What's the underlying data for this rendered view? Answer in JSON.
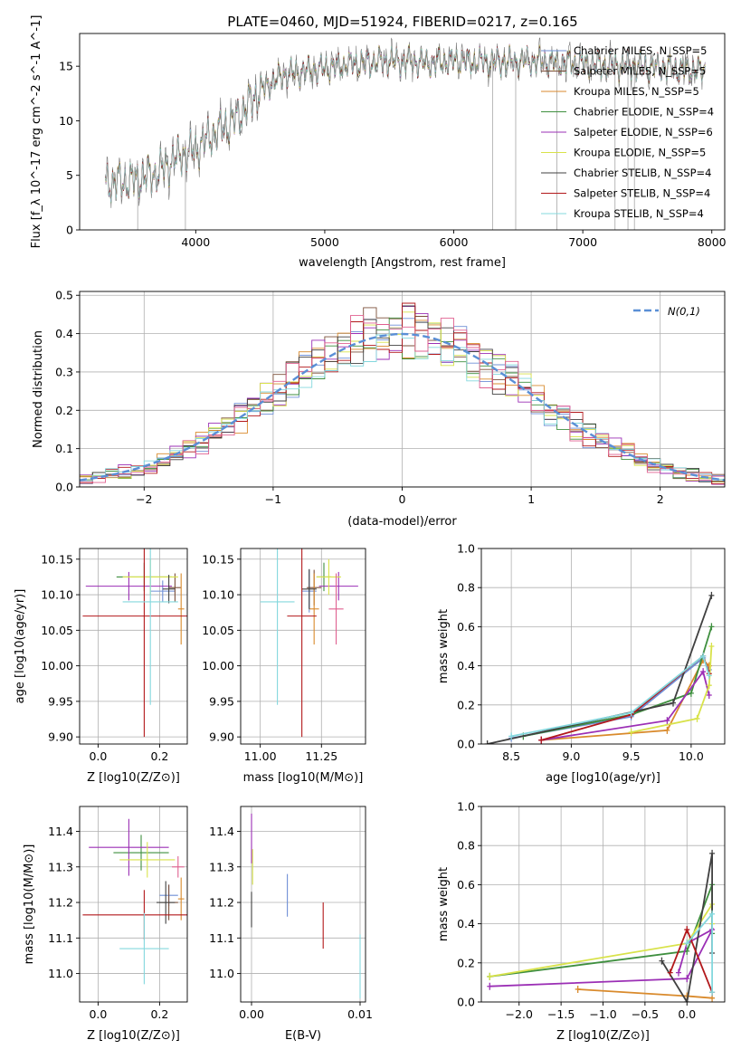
{
  "figure_title": "PLATE=0460, MJD=51924, FIBERID=0217, z=0.165",
  "colors": [
    "#6f8fd6",
    "#7b4f39",
    "#d98a2c",
    "#3f8f3f",
    "#9b2fb5",
    "#d8e24a",
    "#404040",
    "#b2181b",
    "#84d8de"
  ],
  "chart_data": [
    {
      "type": "line",
      "panel": "spectrum",
      "xlabel": "wavelength [Angstrom, rest frame]",
      "ylabel": "Flux [f_λ 10^-17 erg cm^-2 s^-1 A^-1]",
      "xlim": [
        3100,
        8100
      ],
      "ylim": [
        0,
        18
      ],
      "xticks": [
        4000,
        5000,
        6000,
        7000,
        8000
      ],
      "yticks": [
        0,
        5,
        10,
        15
      ],
      "legend_position": "upper-right",
      "wavelength_range": [
        3300,
        7950
      ],
      "continuum": [
        [
          3300,
          4.3
        ],
        [
          3500,
          4.5
        ],
        [
          3700,
          5.2
        ],
        [
          3900,
          7.0
        ],
        [
          4000,
          7.3
        ],
        [
          4100,
          8.5
        ],
        [
          4300,
          10.0
        ],
        [
          4500,
          12.8
        ],
        [
          4700,
          14.3
        ],
        [
          4900,
          14.6
        ],
        [
          5200,
          15.2
        ],
        [
          5500,
          15.5
        ],
        [
          5800,
          15.3
        ],
        [
          6000,
          15.5
        ],
        [
          6300,
          15.4
        ],
        [
          6600,
          15.5
        ],
        [
          7000,
          15.2
        ],
        [
          7400,
          15.0
        ],
        [
          7950,
          14.6
        ]
      ],
      "series": [
        {
          "name": "Chabrier MILES, N_SSP=5",
          "color": "#6f8fd6"
        },
        {
          "name": "Salpeter MILES, N_SSP=5",
          "color": "#7b4f39"
        },
        {
          "name": "Kroupa MILES, N_SSP=5",
          "color": "#d98a2c"
        },
        {
          "name": "Chabrier ELODIE, N_SSP=4",
          "color": "#3f8f3f"
        },
        {
          "name": "Salpeter ELODIE, N_SSP=6",
          "color": "#9b2fb5"
        },
        {
          "name": "Kroupa ELODIE, N_SSP=5",
          "color": "#d8e24a"
        },
        {
          "name": "Chabrier STELIB, N_SSP=4",
          "color": "#404040"
        },
        {
          "name": "Salpeter STELIB, N_SSP=4",
          "color": "#b2181b"
        },
        {
          "name": "Kroupa STELIB, N_SSP=4",
          "color": "#84d8de"
        }
      ],
      "data_spikes": [
        [
          3550,
          0
        ],
        [
          3920,
          0
        ],
        [
          6300,
          0
        ],
        [
          6480,
          0
        ],
        [
          6800,
          0
        ],
        [
          7250,
          0
        ],
        [
          7350,
          0
        ],
        [
          7400,
          0
        ]
      ]
    },
    {
      "type": "bar",
      "panel": "residual-histogram",
      "xlabel": "(data-model)/error",
      "ylabel": "Normed distribution",
      "xlim": [
        -2.5,
        2.5
      ],
      "ylim": [
        0,
        0.51
      ],
      "xticks": [
        -2,
        -1,
        0,
        1,
        2
      ],
      "yticks": [
        0.0,
        0.1,
        0.2,
        0.3,
        0.4,
        0.5
      ],
      "grid": true,
      "legend": "N(0,1)",
      "legend_position": "upper-right",
      "bins": 50,
      "reference_curve": "gaussian mean 0 sigma 1",
      "gaussian_color": "#5a8fd6"
    },
    {
      "type": "scatter",
      "panel": "age-vs-Z",
      "xlabel": "Z [log10(Z/Z⊙)]",
      "ylabel": "age [log10(age/yr)]",
      "xlim": [
        -0.06,
        0.29
      ],
      "ylim": [
        9.89,
        10.165
      ],
      "xticks": [
        0.0,
        0.2
      ],
      "yticks": [
        9.9,
        9.95,
        10.0,
        10.05,
        10.1,
        10.15
      ],
      "grid": true,
      "points": [
        {
          "color": "#6f8fd6",
          "x": 0.21,
          "xerr": 0.04,
          "y": 10.105,
          "yerr": 0.015
        },
        {
          "color": "#7b4f39",
          "x": 0.25,
          "xerr": 0.02,
          "y": 10.11,
          "yerr": 0.02
        },
        {
          "color": "#d98a2c",
          "x": 0.27,
          "xerr": 0.01,
          "y": 10.08,
          "yerr": 0.05
        },
        {
          "color": "#3f8f3f",
          "x": 0.15,
          "xerr": 0.09,
          "y": 10.125,
          "yerr": 0.02
        },
        {
          "color": "#9b2fb5",
          "x": 0.1,
          "xerr": 0.14,
          "y": 10.112,
          "yerr": 0.02
        },
        {
          "color": "#d8e24a",
          "x": 0.17,
          "xerr": 0.09,
          "y": 10.125,
          "yerr": 0.025
        },
        {
          "color": "#404040",
          "x": 0.23,
          "xerr": 0.02,
          "y": 10.108,
          "yerr": 0.02
        },
        {
          "color": "#b2181b",
          "x": 0.15,
          "xerr": 0.2,
          "y": 10.07,
          "yerr": 0.17
        },
        {
          "color": "#84d8de",
          "x": 0.17,
          "xerr": 0.09,
          "y": 10.09,
          "yerr": 0.145
        }
      ]
    },
    {
      "type": "scatter",
      "panel": "age-vs-mass",
      "xlabel": "mass [log10(M/M⊙)]",
      "ylabel": "",
      "xlim": [
        10.92,
        11.43
      ],
      "ylim": [
        9.89,
        10.165
      ],
      "xticks": [
        11.0,
        11.25
      ],
      "yticks": [
        9.9,
        9.95,
        10.0,
        10.05,
        10.1,
        10.15
      ],
      "grid": true,
      "points": [
        {
          "color": "#6f8fd6",
          "x": 11.2,
          "xerr": 0.03,
          "y": 10.105,
          "yerr": 0.03
        },
        {
          "color": "#7b4f39",
          "x": 11.22,
          "xerr": 0.03,
          "y": 10.11,
          "yerr": 0.025
        },
        {
          "color": "#d98a2c",
          "x": 11.22,
          "xerr": 0.02,
          "y": 10.08,
          "yerr": 0.05
        },
        {
          "color": "#3f8f3f",
          "x": 11.26,
          "xerr": 0.03,
          "y": 10.125,
          "yerr": 0.02
        },
        {
          "color": "#9b2fb5",
          "x": 11.32,
          "xerr": 0.08,
          "y": 10.112,
          "yerr": 0.02
        },
        {
          "color": "#d8e24a",
          "x": 11.28,
          "xerr": 0.05,
          "y": 10.125,
          "yerr": 0.025
        },
        {
          "color": "#404040",
          "x": 11.2,
          "xerr": 0.03,
          "y": 10.108,
          "yerr": 0.028
        },
        {
          "color": "#b2181b",
          "x": 11.17,
          "xerr": 0.06,
          "y": 10.07,
          "yerr": 0.17
        },
        {
          "color": "#84d8de",
          "x": 11.07,
          "xerr": 0.07,
          "y": 10.09,
          "yerr": 0.145
        },
        {
          "color": "#e06090",
          "x": 11.31,
          "xerr": 0.03,
          "y": 10.08,
          "yerr": 0.05
        }
      ]
    },
    {
      "type": "line",
      "panel": "mass-weight-vs-age",
      "xlabel": "age [log10(age/yr)]",
      "ylabel": "mass weight",
      "xlim": [
        8.25,
        10.28
      ],
      "ylim": [
        0,
        1.0
      ],
      "xticks": [
        8.5,
        9.0,
        9.5,
        10.0
      ],
      "yticks": [
        0.0,
        0.2,
        0.4,
        0.6,
        0.8,
        1.0
      ],
      "grid": true,
      "series": [
        {
          "color": "#6f8fd6",
          "x": [
            8.5,
            9.5,
            10.1,
            10.15
          ],
          "y": [
            0.03,
            0.14,
            0.44,
            0.38
          ]
        },
        {
          "color": "#d98a2c",
          "x": [
            8.75,
            9.8,
            10.1,
            10.15
          ],
          "y": [
            0.02,
            0.07,
            0.43,
            0.4
          ]
        },
        {
          "color": "#3f8f3f",
          "x": [
            8.6,
            9.5,
            10.0,
            10.17
          ],
          "y": [
            0.04,
            0.15,
            0.26,
            0.6
          ]
        },
        {
          "color": "#9b2fb5",
          "x": [
            8.75,
            9.8,
            10.1,
            10.15
          ],
          "y": [
            0.02,
            0.12,
            0.37,
            0.25
          ]
        },
        {
          "color": "#d8e24a",
          "x": [
            9.5,
            10.05,
            10.15,
            10.17
          ],
          "y": [
            0.06,
            0.13,
            0.3,
            0.5
          ]
        },
        {
          "color": "#404040",
          "x": [
            8.3,
            9.85,
            10.17
          ],
          "y": [
            0.0,
            0.21,
            0.76
          ]
        },
        {
          "color": "#b2181b",
          "x": [
            8.75,
            9.5,
            10.1,
            10.15
          ],
          "y": [
            0.02,
            0.15,
            0.45,
            0.36
          ]
        },
        {
          "color": "#84d8de",
          "x": [
            8.5,
            9.5,
            10.1,
            10.15
          ],
          "y": [
            0.04,
            0.16,
            0.45,
            0.35
          ]
        }
      ]
    },
    {
      "type": "scatter",
      "panel": "mass-vs-Z",
      "xlabel": "Z [log10(Z/Z⊙)]",
      "ylabel": "mass [log10(M/M⊙)]",
      "xlim": [
        -0.06,
        0.29
      ],
      "ylim": [
        10.92,
        11.47
      ],
      "xticks": [
        0.0,
        0.2
      ],
      "yticks": [
        11.0,
        11.1,
        11.2,
        11.3,
        11.4
      ],
      "grid": true,
      "points": [
        {
          "color": "#6f8fd6",
          "x": 0.23,
          "xerr": 0.03,
          "y": 11.22,
          "yerr": 0.03
        },
        {
          "color": "#7b4f39",
          "x": 0.23,
          "xerr": 0.03,
          "y": 11.2,
          "yerr": 0.05
        },
        {
          "color": "#d98a2c",
          "x": 0.27,
          "xerr": 0.01,
          "y": 11.21,
          "yerr": 0.06
        },
        {
          "color": "#3f8f3f",
          "x": 0.14,
          "xerr": 0.09,
          "y": 11.34,
          "yerr": 0.05
        },
        {
          "color": "#9b2fb5",
          "x": 0.1,
          "xerr": 0.13,
          "y": 11.355,
          "yerr": 0.08
        },
        {
          "color": "#d8e24a",
          "x": 0.16,
          "xerr": 0.09,
          "y": 11.32,
          "yerr": 0.05
        },
        {
          "color": "#404040",
          "x": 0.22,
          "xerr": 0.03,
          "y": 11.2,
          "yerr": 0.06
        },
        {
          "color": "#b2181b",
          "x": 0.15,
          "xerr": 0.2,
          "y": 11.165,
          "yerr": 0.07
        },
        {
          "color": "#84d8de",
          "x": 0.15,
          "xerr": 0.08,
          "y": 11.07,
          "yerr": 0.1
        },
        {
          "color": "#e06090",
          "x": 0.26,
          "xerr": 0.02,
          "y": 11.3,
          "yerr": 0.03
        }
      ]
    },
    {
      "type": "scatter",
      "panel": "mass-vs-EBV",
      "xlabel": "E(B-V)",
      "ylabel": "",
      "xlim": [
        -0.001,
        0.0105
      ],
      "ylim": [
        10.92,
        11.47
      ],
      "xticks": [
        0.0,
        0.01
      ],
      "yticks": [
        11.0,
        11.1,
        11.2,
        11.3,
        11.4
      ],
      "grid": true,
      "points": [
        {
          "color": "#6f8fd6",
          "x": 0.0033,
          "y": 11.22,
          "yerr": 0.06
        },
        {
          "color": "#b2181b",
          "x": 0.0066,
          "y": 11.135,
          "yerr": 0.065
        },
        {
          "color": "#84d8de",
          "x": 0.01,
          "y": 11.02,
          "yerr": 0.09
        },
        {
          "color": "#9b2fb5",
          "x": 0.0,
          "y": 11.38,
          "yerr": 0.07
        },
        {
          "color": "#d8e24a",
          "x": 0.0001,
          "y": 11.3,
          "yerr": 0.05
        },
        {
          "color": "#404040",
          "x": 0.0,
          "y": 11.18,
          "yerr": 0.05
        }
      ]
    },
    {
      "type": "line",
      "panel": "mass-weight-vs-Z",
      "xlabel": "Z [log10(Z/Z⊙)]",
      "ylabel": "mass weight",
      "xlim": [
        -2.45,
        0.45
      ],
      "ylim": [
        0,
        1.0
      ],
      "xticks": [
        -2.0,
        -1.5,
        -1.0,
        -0.5,
        0.0
      ],
      "yticks": [
        0.0,
        0.2,
        0.4,
        0.6,
        0.8,
        1.0
      ],
      "grid": true,
      "series": [
        {
          "color": "#d98a2c",
          "x": [
            -1.3,
            0.0,
            0.3
          ],
          "y": [
            0.065,
            0.03,
            0.02
          ]
        },
        {
          "color": "#3f8f3f",
          "x": [
            -2.35,
            0.0,
            0.3,
            0.3
          ],
          "y": [
            0.13,
            0.26,
            0.6,
            0.35
          ]
        },
        {
          "color": "#9b2fb5",
          "x": [
            -2.35,
            0.0,
            0.3,
            0.0,
            -0.1
          ],
          "y": [
            0.08,
            0.12,
            0.37,
            0.3,
            0.15
          ]
        },
        {
          "color": "#d8e24a",
          "x": [
            -2.35,
            0.0,
            0.3,
            0.3
          ],
          "y": [
            0.13,
            0.3,
            0.5,
            0.4
          ]
        },
        {
          "color": "#404040",
          "x": [
            -0.3,
            0.0,
            0.3,
            0.3
          ],
          "y": [
            0.21,
            0.0,
            0.76,
            0.25
          ]
        },
        {
          "color": "#b2181b",
          "x": [
            -0.2,
            0.0,
            0.3
          ],
          "y": [
            0.15,
            0.37,
            0.05
          ]
        },
        {
          "color": "#84d8de",
          "x": [
            0.0,
            0.3,
            0.3
          ],
          "y": [
            0.3,
            0.45,
            0.05
          ]
        }
      ]
    }
  ]
}
